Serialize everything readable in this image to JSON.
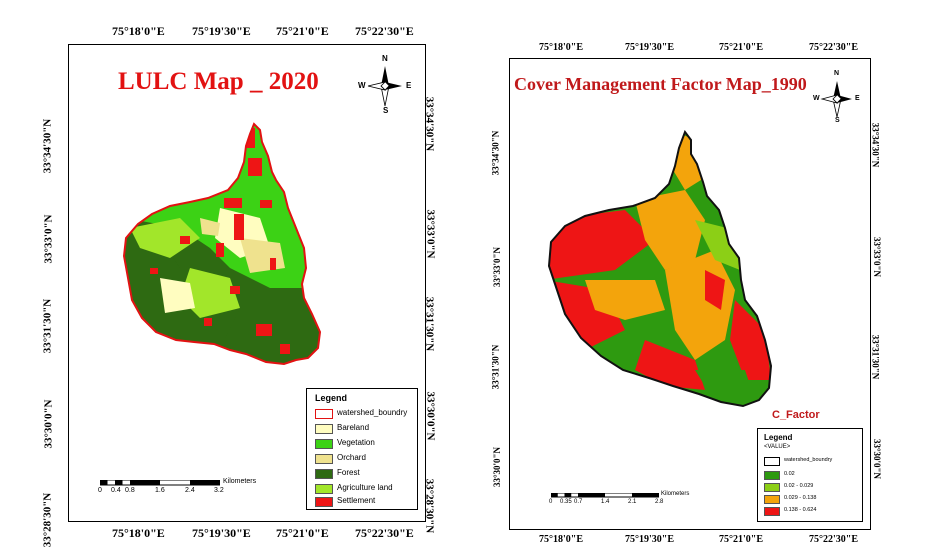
{
  "left_map": {
    "title": "LULC Map _ 2020",
    "lon_labels": [
      "75°18'0\"E",
      "75°19'30\"E",
      "75°21'0\"E",
      "75°22'30\"E"
    ],
    "lat_labels_left": [
      "33°34'30\"N",
      "33°33'0\"N",
      "33°31'30\"N",
      "33°30'0\"N",
      "33°28'30\"N"
    ],
    "lat_labels_right": [
      "33°34'30\"N",
      "33°33'0\"N",
      "33°31'30\"N",
      "33°30'0\"N",
      "33°28'30\"N"
    ],
    "north_arrow": {
      "n": "N",
      "s": "S",
      "e": "E",
      "w": "W"
    },
    "legend": {
      "title": "Legend",
      "items": [
        {
          "label": "watershed_boundry",
          "color": "#ffffff",
          "border": "#e21212"
        },
        {
          "label": "Bareland",
          "color": "#fffdc0"
        },
        {
          "label": "Vegetation",
          "color": "#3cd215"
        },
        {
          "label": "Orchard",
          "color": "#efe28e"
        },
        {
          "label": "Forest",
          "color": "#2e6a12"
        },
        {
          "label": "Agriculture land",
          "color": "#a2e62a"
        },
        {
          "label": "Settlement",
          "color": "#ee1515"
        }
      ]
    },
    "scale": {
      "ticks": [
        "0",
        "0.4",
        "0.8",
        "1.6",
        "2.4",
        "3.2"
      ],
      "unit": "Kilometers"
    }
  },
  "right_map": {
    "title": "Cover Management Factor Map_1990",
    "lon_labels": [
      "75°18'0\"E",
      "75°19'30\"E",
      "75°21'0\"E",
      "75°22'30\"E"
    ],
    "lat_labels_left": [
      "33°34'30\"N",
      "33°33'0\"N",
      "33°31'30\"N",
      "33°30'0\"N"
    ],
    "lat_labels_right": [
      "33°34'30\"N",
      "33°33'0\"N",
      "33°31'30\"N",
      "33°30'0\"N"
    ],
    "north_arrow": {
      "n": "N",
      "s": "S",
      "e": "E",
      "w": "W"
    },
    "legend_caption": "C_Factor",
    "legend": {
      "title": "Legend",
      "subtitle": "<VALUE>",
      "items": [
        {
          "label": "watershed_boundry",
          "color": "#ffffff",
          "border": "#000000"
        },
        {
          "label": "0.02",
          "color": "#2e9a10"
        },
        {
          "label": "0.02 - 0.029",
          "color": "#8ccf16"
        },
        {
          "label": "0.029 - 0.138",
          "color": "#f3a40c"
        },
        {
          "label": "0.138 - 0.624",
          "color": "#ee1515"
        }
      ]
    },
    "scale": {
      "ticks": [
        "0",
        "0.35",
        "0.7",
        "1.4",
        "2.1",
        "2.8"
      ],
      "unit": "Kilometers"
    }
  }
}
